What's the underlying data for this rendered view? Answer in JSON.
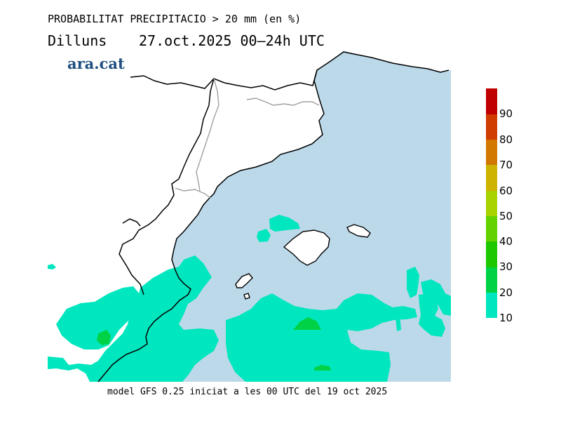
{
  "header": {
    "title": "PROBABILITAT PRECIPITACIO > 20 mm (en %)",
    "day": "Dilluns",
    "date_range": "27.oct.2025 00—24h UTC",
    "brand": "ara.cat"
  },
  "legend": {
    "labels": [
      "90",
      "80",
      "70",
      "60",
      "50",
      "40",
      "30",
      "20",
      "10"
    ],
    "colors": [
      "#c00000",
      "#d03c00",
      "#d27800",
      "#ceb400",
      "#a8d200",
      "#64d200",
      "#1ec800",
      "#00d246",
      "#00e6be"
    ]
  },
  "map": {
    "sea_color": "#bcd9ea",
    "land_color": "#ffffff",
    "coast_color": "#000000",
    "border_color": "#a0a0a0"
  },
  "footer": {
    "text": "model GFS 0.25 iniciat a les 00 UTC del 19 oct 2025"
  }
}
